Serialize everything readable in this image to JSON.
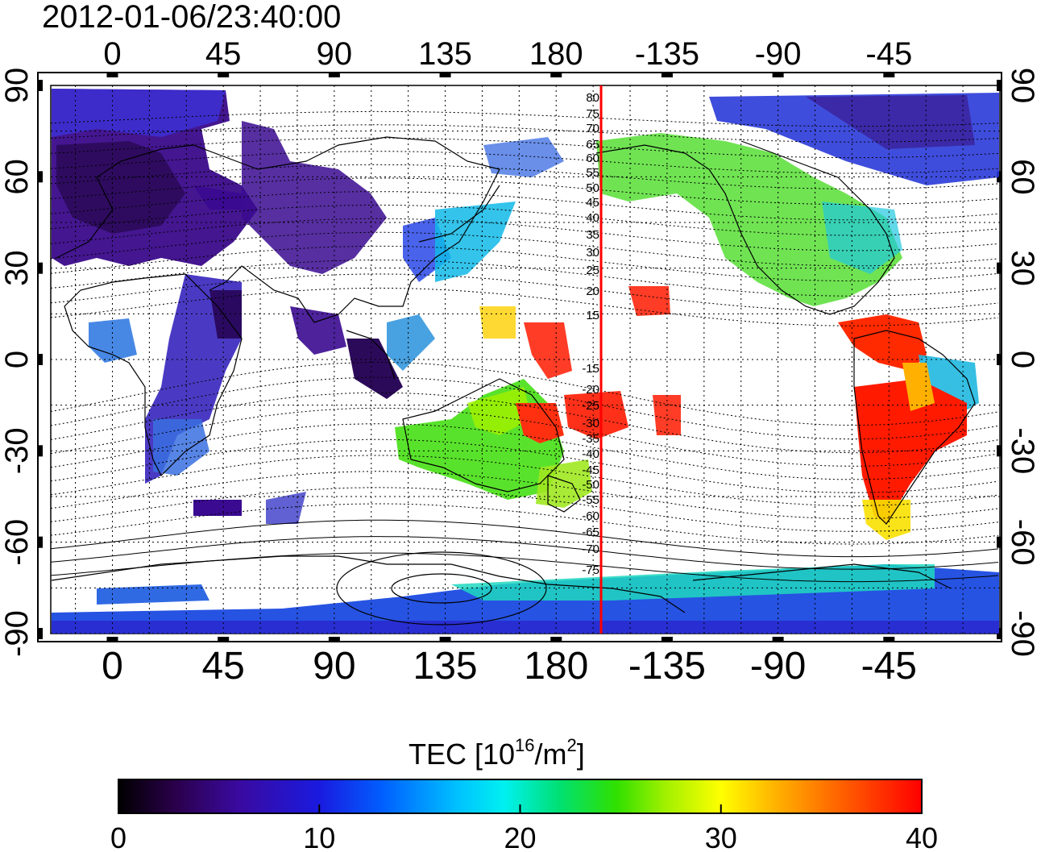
{
  "timestamp": "2012-01-06/23:40:00",
  "map": {
    "type": "global-tec-map",
    "lon_ticks_labels": [
      "0",
      "45",
      "90",
      "135",
      "180",
      "-135",
      "-90",
      "-45"
    ],
    "lat_ticks_labels": [
      "90",
      "60",
      "30",
      "0",
      "-30",
      "-60",
      "-90"
    ],
    "meridian_marker_lon": 185,
    "meridian_marker_color": "#ff0000",
    "magnetic_lat_labels": [
      "80",
      "75",
      "70",
      "65",
      "60",
      "55",
      "50",
      "45",
      "40",
      "35",
      "30",
      "25",
      "20",
      "15",
      "-15",
      "-20",
      "-25",
      "-30",
      "-35",
      "-40",
      "-45",
      "-50",
      "-55",
      "-60",
      "-65",
      "-70",
      "-75"
    ],
    "grid": true
  },
  "colorbar": {
    "title_main": "TEC  [10",
    "title_sup1": "16",
    "title_mid": "/m",
    "title_sup2": "2",
    "title_end": "]",
    "tick_labels": [
      "0",
      "10",
      "20",
      "30",
      "40"
    ],
    "range": [
      0,
      40
    ],
    "colors": [
      "#000000",
      "#2a004a",
      "#3a0aa0",
      "#1a1adf",
      "#0060ff",
      "#00bfff",
      "#00f0f0",
      "#00e070",
      "#30e000",
      "#a0f000",
      "#ffff00",
      "#ffb000",
      "#ff6000",
      "#ff0000"
    ]
  }
}
